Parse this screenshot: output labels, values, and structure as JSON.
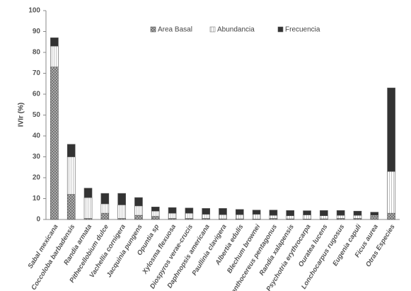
{
  "chart_data": {
    "type": "stacked_bar",
    "y_label": "IVIr (%)",
    "categories": [
      "Sabal mexicana",
      "Coccoloba barbadensis",
      "Randia armata",
      "Pithecellobium dulce",
      "Vachellia cornigera",
      "Jacquinia pungens",
      "Opuntia sp",
      "Xylosma flexuosa",
      "Diospyros verae-crucis",
      "Daphnopsis americana",
      "Paullinia clavigera",
      "Albertia edulis",
      "Blechum brownei",
      "Acanthocereus pentagonus",
      "Randia xalapensis",
      "Psychotria erythrocarpa",
      "Ouratea lucens",
      "Lonchocarpus rugosus",
      "Eugenia capuli",
      "Ficus aurea",
      "Otras Especies"
    ],
    "series": [
      {
        "name": "Area Basal",
        "color": "#9a9a9a",
        "values": [
          73,
          12,
          0.5,
          3,
          0.5,
          2,
          1.5,
          0.5,
          0.5,
          0.5,
          0.3,
          0.3,
          0.2,
          0.5,
          0.3,
          0.2,
          0.3,
          0.5,
          0.5,
          1.5,
          3
        ]
      },
      {
        "name": "Abundancia",
        "color": "#ffffff",
        "values": [
          10,
          18,
          10,
          4.5,
          6.5,
          4.5,
          2.5,
          2.5,
          2.5,
          2,
          2,
          2,
          2.3,
          1.5,
          1.5,
          2,
          1.5,
          1.5,
          1.5,
          0.5,
          20
        ]
      },
      {
        "name": "Frecuencia",
        "color": "#333333",
        "values": [
          4,
          6,
          4.5,
          5,
          5.5,
          4,
          2,
          2.7,
          2.5,
          2.8,
          3,
          2.5,
          2,
          2.5,
          2.5,
          2,
          2.5,
          2.3,
          2,
          1.5,
          40
        ]
      }
    ],
    "ylim": [
      0,
      100
    ],
    "yticks": [
      0,
      10,
      20,
      30,
      40,
      50,
      60,
      70,
      80,
      90,
      100
    ]
  }
}
